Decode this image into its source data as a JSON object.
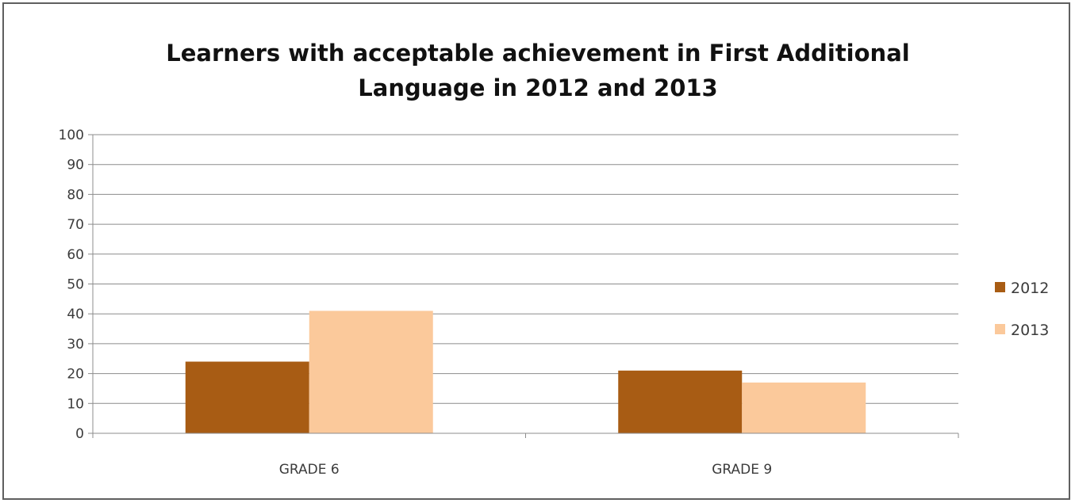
{
  "chart_data": {
    "type": "bar",
    "title": "Learners with acceptable achievement in First Additional Language in 2012 and 2013",
    "title_lines": [
      "Learners with acceptable achievement in First Additional",
      "Language in 2012 and 2013"
    ],
    "categories": [
      "GRADE 6",
      "GRADE 9"
    ],
    "series": [
      {
        "name": "2012",
        "values": [
          24,
          21
        ],
        "color": "#a85c14"
      },
      {
        "name": "2013",
        "values": [
          41,
          17
        ],
        "color": "#fbc99b"
      }
    ],
    "ylim": [
      0,
      100
    ],
    "yticks": [
      "0",
      "10",
      "20",
      "30",
      "40",
      "50",
      "60",
      "70",
      "80",
      "90",
      "100"
    ],
    "xlabel": "",
    "ylabel": "",
    "grid": true,
    "legend_position": "right"
  },
  "colors": {
    "gridline": "#8c8c8c",
    "axis": "#8c8c8c",
    "frame": "#5f5f5f"
  }
}
